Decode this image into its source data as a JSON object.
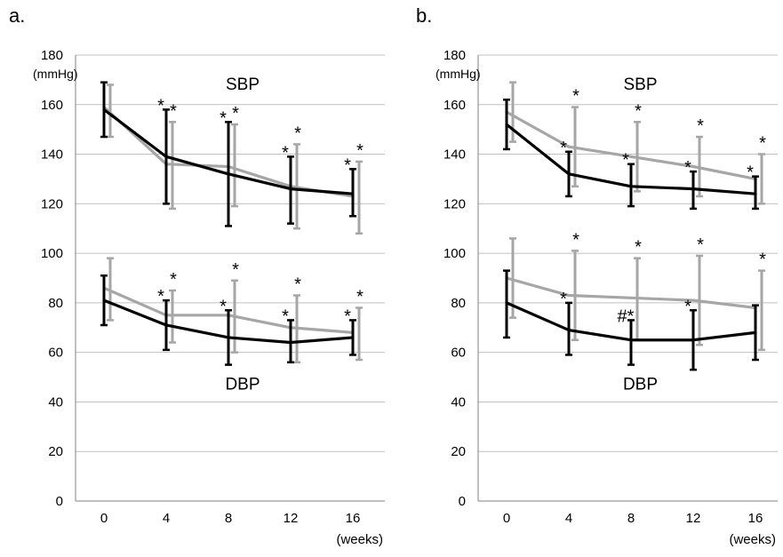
{
  "figure": {
    "panel_labels": [
      "a.",
      "b."
    ],
    "y_unit": "(mmHg)",
    "x_unit": "(weeks)",
    "sbp_label": "SBP",
    "dbp_label": "DBP"
  },
  "colors": {
    "black_series": "#000000",
    "gray_series": "#a6a6a6",
    "grid": "#c0c0c0",
    "axis": "#808080",
    "text": "#000000"
  },
  "chart_data": [
    {
      "type": "line",
      "panel": "a.",
      "x": [
        0,
        4,
        8,
        12,
        16
      ],
      "xlabel": "(weeks)",
      "ylabel": "(mmHg)",
      "ylim": [
        0,
        180
      ],
      "yticks": [
        0,
        20,
        40,
        60,
        80,
        100,
        120,
        140,
        160,
        180
      ],
      "grid": true,
      "annotations": [
        "SBP",
        "DBP"
      ],
      "series": [
        {
          "group": "SBP",
          "color": "gray",
          "values": [
            159,
            136,
            135,
            127,
            123
          ],
          "error": [
            [
              147,
              168
            ],
            [
              118,
              153
            ],
            [
              119,
              152
            ],
            [
              110,
              144
            ],
            [
              108,
              137
            ]
          ],
          "markers": [
            "",
            "*",
            "*",
            "*",
            "*"
          ]
        },
        {
          "group": "SBP",
          "color": "black",
          "values": [
            158,
            139,
            132,
            126,
            124
          ],
          "error": [
            [
              147,
              169
            ],
            [
              120,
              158
            ],
            [
              111,
              153
            ],
            [
              112,
              139
            ],
            [
              115,
              134
            ]
          ],
          "markers": [
            "",
            "*",
            "*",
            "*",
            "*"
          ]
        },
        {
          "group": "DBP",
          "color": "gray",
          "values": [
            86,
            75,
            75,
            70,
            68
          ],
          "error": [
            [
              73,
              98
            ],
            [
              64,
              85
            ],
            [
              60,
              89
            ],
            [
              56,
              83
            ],
            [
              57,
              78
            ]
          ],
          "markers": [
            "",
            "*",
            "*",
            "*",
            "*"
          ]
        },
        {
          "group": "DBP",
          "color": "black",
          "values": [
            81,
            71,
            66,
            64,
            66
          ],
          "error": [
            [
              71,
              91
            ],
            [
              61,
              81
            ],
            [
              55,
              77
            ],
            [
              56,
              73
            ],
            [
              59,
              73
            ]
          ],
          "markers": [
            "",
            "*",
            "*",
            "*",
            "*"
          ]
        }
      ]
    },
    {
      "type": "line",
      "panel": "b.",
      "x": [
        0,
        4,
        8,
        12,
        16
      ],
      "xlabel": "(weeks)",
      "ylabel": "(mmHg)",
      "ylim": [
        0,
        180
      ],
      "yticks": [
        0,
        20,
        40,
        60,
        80,
        100,
        120,
        140,
        160,
        180
      ],
      "grid": true,
      "annotations": [
        "SBP",
        "DBP"
      ],
      "series": [
        {
          "group": "SBP",
          "color": "gray",
          "values": [
            157,
            143,
            139,
            135,
            130
          ],
          "error": [
            [
              145,
              169
            ],
            [
              127,
              159
            ],
            [
              125,
              153
            ],
            [
              123,
              147
            ],
            [
              120,
              140
            ]
          ],
          "markers": [
            "",
            "*",
            "*",
            "*",
            "*"
          ]
        },
        {
          "group": "SBP",
          "color": "black",
          "values": [
            152,
            132,
            127,
            126,
            124
          ],
          "error": [
            [
              142,
              162
            ],
            [
              123,
              141
            ],
            [
              119,
              136
            ],
            [
              118,
              133
            ],
            [
              118,
              131
            ]
          ],
          "markers": [
            "",
            "*",
            "*",
            "*",
            "*"
          ]
        },
        {
          "group": "DBP",
          "color": "gray",
          "values": [
            90,
            83,
            82,
            81,
            78
          ],
          "error": [
            [
              74,
              106
            ],
            [
              65,
              101
            ],
            [
              65,
              98
            ],
            [
              63,
              99
            ],
            [
              61,
              93
            ]
          ],
          "markers": [
            "",
            "*",
            "*",
            "*",
            "*"
          ]
        },
        {
          "group": "DBP",
          "color": "black",
          "values": [
            80,
            69,
            65,
            65,
            68
          ],
          "error": [
            [
              66,
              93
            ],
            [
              59,
              80
            ],
            [
              55,
              73
            ],
            [
              53,
              77
            ],
            [
              57,
              79
            ]
          ],
          "markers": [
            "",
            "*",
            "#*",
            "*",
            ""
          ]
        }
      ]
    }
  ]
}
